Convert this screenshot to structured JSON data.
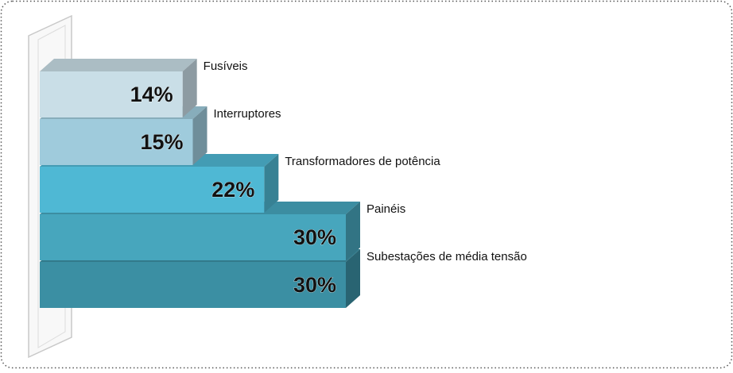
{
  "chart_data": {
    "type": "bar",
    "categories": [
      "Fusíveis",
      "Interruptores",
      "Transformadores de potência",
      "Painéis",
      "Subestações de média tensão"
    ],
    "values": [
      14,
      15,
      22,
      30,
      30
    ],
    "value_labels": [
      "14%",
      "15%",
      "22%",
      "30%",
      "30%"
    ],
    "colors": [
      "#c9dee7",
      "#9fcbdc",
      "#4fb8d4",
      "#47a6bd",
      "#3b8fa3"
    ]
  }
}
